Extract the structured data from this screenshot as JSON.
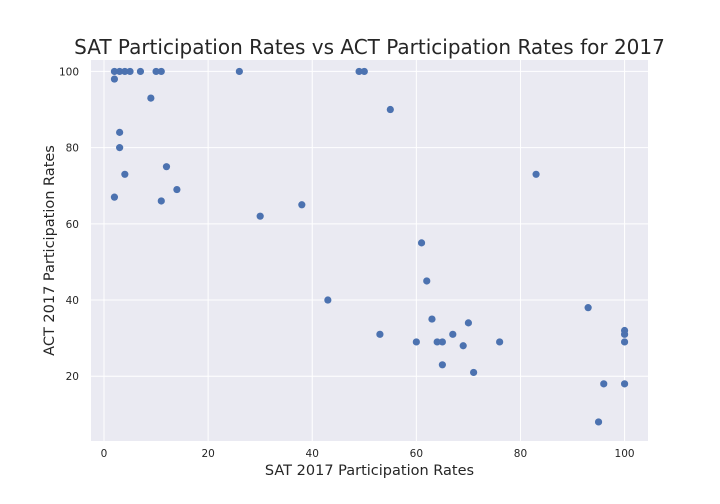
{
  "chart_data": {
    "type": "scatter",
    "title": "SAT Participation Rates vs ACT Participation Rates for 2017",
    "xlabel": "SAT 2017 Participation Rates",
    "ylabel": "ACT 2017 Participation Rates",
    "xlim": [
      -2.5,
      104.5
    ],
    "ylim": [
      3,
      103
    ],
    "xticks": [
      0,
      20,
      40,
      60,
      80,
      100
    ],
    "yticks": [
      20,
      40,
      60,
      80,
      100
    ],
    "grid": true,
    "colors": {
      "background": "#eaeaf2",
      "grid": "#ffffff",
      "point": "#4c72b0"
    },
    "points": [
      {
        "x": 2,
        "y": 100
      },
      {
        "x": 3,
        "y": 100
      },
      {
        "x": 4,
        "y": 100
      },
      {
        "x": 5,
        "y": 100
      },
      {
        "x": 7,
        "y": 100
      },
      {
        "x": 10,
        "y": 100
      },
      {
        "x": 11,
        "y": 100
      },
      {
        "x": 26,
        "y": 100
      },
      {
        "x": 49,
        "y": 100
      },
      {
        "x": 50,
        "y": 100
      },
      {
        "x": 2,
        "y": 98
      },
      {
        "x": 9,
        "y": 93
      },
      {
        "x": 55,
        "y": 90
      },
      {
        "x": 3,
        "y": 84
      },
      {
        "x": 3,
        "y": 80
      },
      {
        "x": 12,
        "y": 75
      },
      {
        "x": 4,
        "y": 73
      },
      {
        "x": 83,
        "y": 73
      },
      {
        "x": 14,
        "y": 69
      },
      {
        "x": 2,
        "y": 67
      },
      {
        "x": 11,
        "y": 66
      },
      {
        "x": 38,
        "y": 65
      },
      {
        "x": 30,
        "y": 62
      },
      {
        "x": 61,
        "y": 55
      },
      {
        "x": 62,
        "y": 45
      },
      {
        "x": 43,
        "y": 40
      },
      {
        "x": 93,
        "y": 38
      },
      {
        "x": 63,
        "y": 35
      },
      {
        "x": 70,
        "y": 34
      },
      {
        "x": 100,
        "y": 32
      },
      {
        "x": 53,
        "y": 31
      },
      {
        "x": 67,
        "y": 31
      },
      {
        "x": 100,
        "y": 31
      },
      {
        "x": 60,
        "y": 29
      },
      {
        "x": 64,
        "y": 29
      },
      {
        "x": 65,
        "y": 29
      },
      {
        "x": 76,
        "y": 29
      },
      {
        "x": 100,
        "y": 29
      },
      {
        "x": 69,
        "y": 28
      },
      {
        "x": 65,
        "y": 23
      },
      {
        "x": 71,
        "y": 21
      },
      {
        "x": 96,
        "y": 18
      },
      {
        "x": 100,
        "y": 18
      },
      {
        "x": 95,
        "y": 8
      }
    ]
  }
}
